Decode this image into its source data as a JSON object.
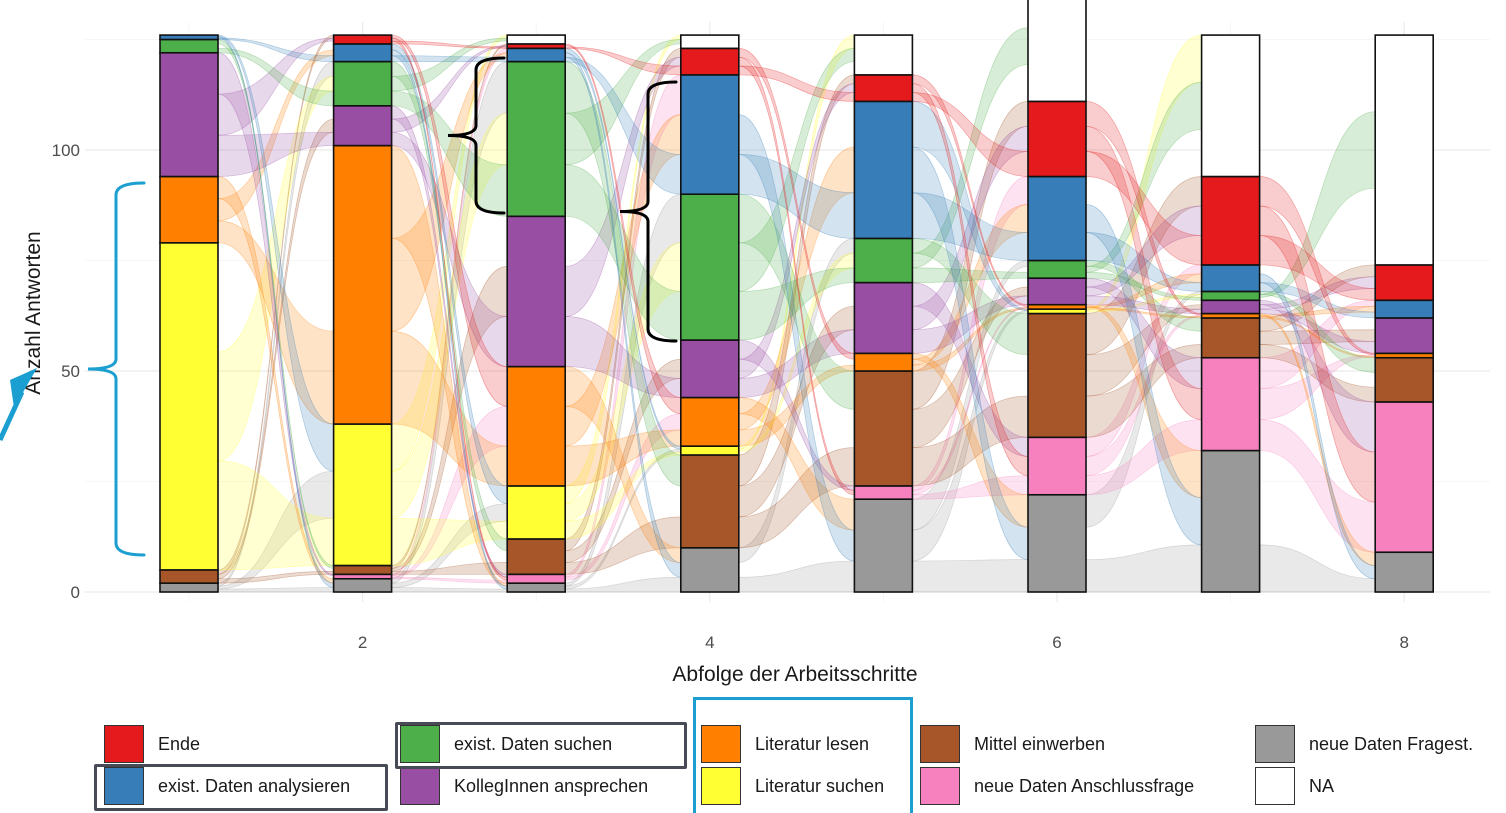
{
  "chart_data": {
    "type": "bar",
    "subtype": "stacked-alluvial",
    "xlabel": "Abfolge der Arbeitsschritte",
    "ylabel": "Anzahl Antworten",
    "x_ticks": [
      2,
      4,
      6,
      8
    ],
    "y_ticks": [
      0,
      50,
      100
    ],
    "ylim": [
      0,
      126
    ],
    "xlim": [
      0.5,
      8.5
    ],
    "grid": true,
    "legend_position": "bottom",
    "categories": [
      1,
      2,
      3,
      4,
      5,
      6,
      7,
      8
    ],
    "series": [
      {
        "name": "neue Daten Fragest.",
        "color": "#999999",
        "values": [
          2,
          3,
          2,
          10,
          21,
          22,
          32,
          9
        ]
      },
      {
        "name": "neue Daten Anschlussfrage",
        "color": "#f781bf",
        "values": [
          0,
          1,
          2,
          0,
          3,
          13,
          21,
          34
        ]
      },
      {
        "name": "Mittel einwerben",
        "color": "#a65628",
        "values": [
          3,
          2,
          8,
          21,
          26,
          28,
          9,
          10
        ]
      },
      {
        "name": "Literatur suchen",
        "color": "#ffff33",
        "values": [
          74,
          32,
          12,
          2,
          0,
          1,
          0,
          0
        ]
      },
      {
        "name": "Literatur lesen",
        "color": "#ff7f00",
        "values": [
          15,
          63,
          27,
          11,
          4,
          1,
          1,
          1
        ]
      },
      {
        "name": "KollegInnen ansprechen",
        "color": "#984ea3",
        "values": [
          28,
          9,
          34,
          13,
          16,
          6,
          3,
          8
        ]
      },
      {
        "name": "exist. Daten suchen",
        "color": "#4daf4a",
        "values": [
          3,
          10,
          35,
          33,
          10,
          4,
          2,
          0
        ]
      },
      {
        "name": "exist. Daten analysieren",
        "color": "#377eb8",
        "values": [
          1,
          4,
          3,
          27,
          31,
          19,
          6,
          4
        ]
      },
      {
        "name": "Ende",
        "color": "#e41a1c",
        "values": [
          0,
          2,
          1,
          6,
          6,
          17,
          20,
          8
        ]
      },
      {
        "name": "NA",
        "color": "#ffffff",
        "values": [
          0,
          0,
          2,
          3,
          9,
          25,
          32,
          52
        ]
      }
    ]
  },
  "legend": {
    "items": [
      {
        "label": "Ende",
        "color": "#e41a1c"
      },
      {
        "label": "exist. Daten analysieren",
        "color": "#377eb8"
      },
      {
        "label": "exist. Daten suchen",
        "color": "#4daf4a"
      },
      {
        "label": "KollegInnen ansprechen",
        "color": "#984ea3"
      },
      {
        "label": "Literatur lesen",
        "color": "#ff7f00"
      },
      {
        "label": "Literatur suchen",
        "color": "#ffff33"
      },
      {
        "label": "Mittel einwerben",
        "color": "#a65628"
      },
      {
        "label": "neue Daten Anschlussfrage",
        "color": "#f781bf"
      },
      {
        "label": "neue Daten Fragest.",
        "color": "#999999"
      },
      {
        "label": "NA",
        "color": "#ffffff"
      }
    ]
  },
  "annotation_colors": {
    "bracket_blue": "#1a9fd0",
    "bracket_black": "#000000",
    "box_dark": "#474b55"
  }
}
